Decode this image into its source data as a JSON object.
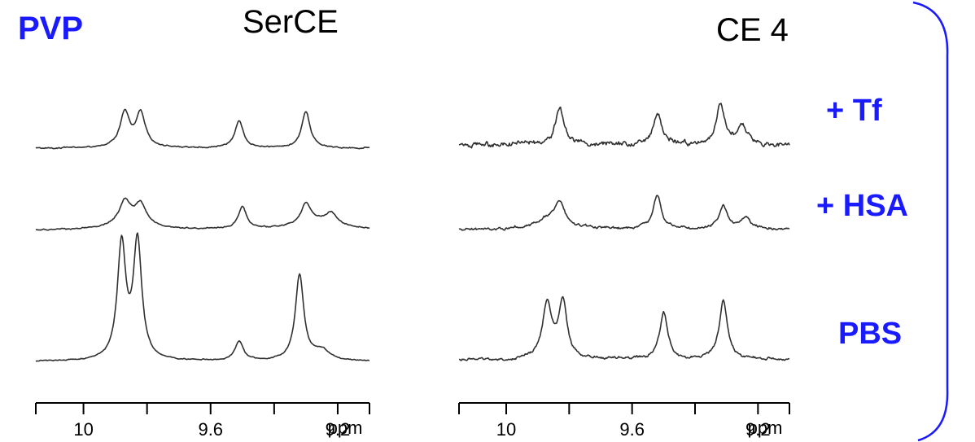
{
  "figure_label": "PVP",
  "colors": {
    "label": "#1a1aff",
    "trace": "#303030",
    "axis": "#000000"
  },
  "chart_data": [
    {
      "type": "line",
      "title": "SerCE",
      "xlabel": "ppm",
      "x_reversed": true,
      "xlim": [
        10.15,
        9.1
      ],
      "tick_labels": [
        "10",
        "9.6",
        "9.2"
      ],
      "tick_values": [
        10.0,
        9.6,
        9.2
      ],
      "minor_tick_values": [
        10.15,
        9.8,
        9.4,
        9.1
      ],
      "series": [
        {
          "name": "+ Tf",
          "noise": 0.35,
          "broad": [],
          "peaks": [
            {
              "ppm": 9.87,
              "height": 7.2,
              "width": 0.018
            },
            {
              "ppm": 9.82,
              "height": 7.0,
              "width": 0.018
            },
            {
              "ppm": 9.51,
              "height": 5.6,
              "width": 0.016
            },
            {
              "ppm": 9.3,
              "height": 7.4,
              "width": 0.016
            }
          ]
        },
        {
          "name": "+ HSA",
          "noise": 0.35,
          "broad": [
            {
              "ppm": 9.85,
              "height": 1.8,
              "width": 0.07
            },
            {
              "ppm": 9.27,
              "height": 1.8,
              "width": 0.08
            }
          ],
          "peaks": [
            {
              "ppm": 9.87,
              "height": 4.3,
              "width": 0.02
            },
            {
              "ppm": 9.82,
              "height": 3.9,
              "width": 0.02
            },
            {
              "ppm": 9.5,
              "height": 4.6,
              "width": 0.016
            },
            {
              "ppm": 9.3,
              "height": 3.9,
              "width": 0.018
            },
            {
              "ppm": 9.22,
              "height": 2.4,
              "width": 0.02
            }
          ]
        },
        {
          "name": "PBS",
          "noise": 0.3,
          "broad": [],
          "peaks": [
            {
              "ppm": 9.88,
              "height": 23.5,
              "width": 0.016
            },
            {
              "ppm": 9.83,
              "height": 24.0,
              "width": 0.016
            },
            {
              "ppm": 9.51,
              "height": 4.0,
              "width": 0.016
            },
            {
              "ppm": 9.32,
              "height": 17.5,
              "width": 0.016
            },
            {
              "ppm": 9.25,
              "height": 2.0,
              "width": 0.03
            }
          ]
        }
      ]
    },
    {
      "type": "line",
      "title": "CE 4",
      "xlabel": "ppm",
      "x_reversed": true,
      "xlim": [
        10.15,
        9.1
      ],
      "tick_labels": [
        "10",
        "9.6",
        "9.2"
      ],
      "tick_values": [
        10.0,
        9.6,
        9.2
      ],
      "minor_tick_values": [
        10.15,
        9.8,
        9.4,
        9.1
      ],
      "series": [
        {
          "name": "+ Tf",
          "noise": 1.3,
          "broad": [],
          "peaks": [
            {
              "ppm": 9.83,
              "height": 7.5,
              "width": 0.016
            },
            {
              "ppm": 9.52,
              "height": 6.5,
              "width": 0.016
            },
            {
              "ppm": 9.32,
              "height": 8.5,
              "width": 0.016
            },
            {
              "ppm": 9.25,
              "height": 4.0,
              "width": 0.02
            }
          ]
        },
        {
          "name": "+ HSA",
          "noise": 0.7,
          "broad": [
            {
              "ppm": 9.86,
              "height": 2.2,
              "width": 0.05
            }
          ],
          "peaks": [
            {
              "ppm": 9.83,
              "height": 4.5,
              "width": 0.018
            },
            {
              "ppm": 9.52,
              "height": 6.8,
              "width": 0.016
            },
            {
              "ppm": 9.31,
              "height": 4.6,
              "width": 0.016
            },
            {
              "ppm": 9.24,
              "height": 2.4,
              "width": 0.02
            }
          ]
        },
        {
          "name": "PBS",
          "noise": 0.7,
          "broad": [],
          "peaks": [
            {
              "ppm": 9.87,
              "height": 11.5,
              "width": 0.018
            },
            {
              "ppm": 9.82,
              "height": 11.5,
              "width": 0.016
            },
            {
              "ppm": 9.5,
              "height": 9.5,
              "width": 0.016
            },
            {
              "ppm": 9.31,
              "height": 12.0,
              "width": 0.016
            }
          ]
        }
      ]
    }
  ]
}
